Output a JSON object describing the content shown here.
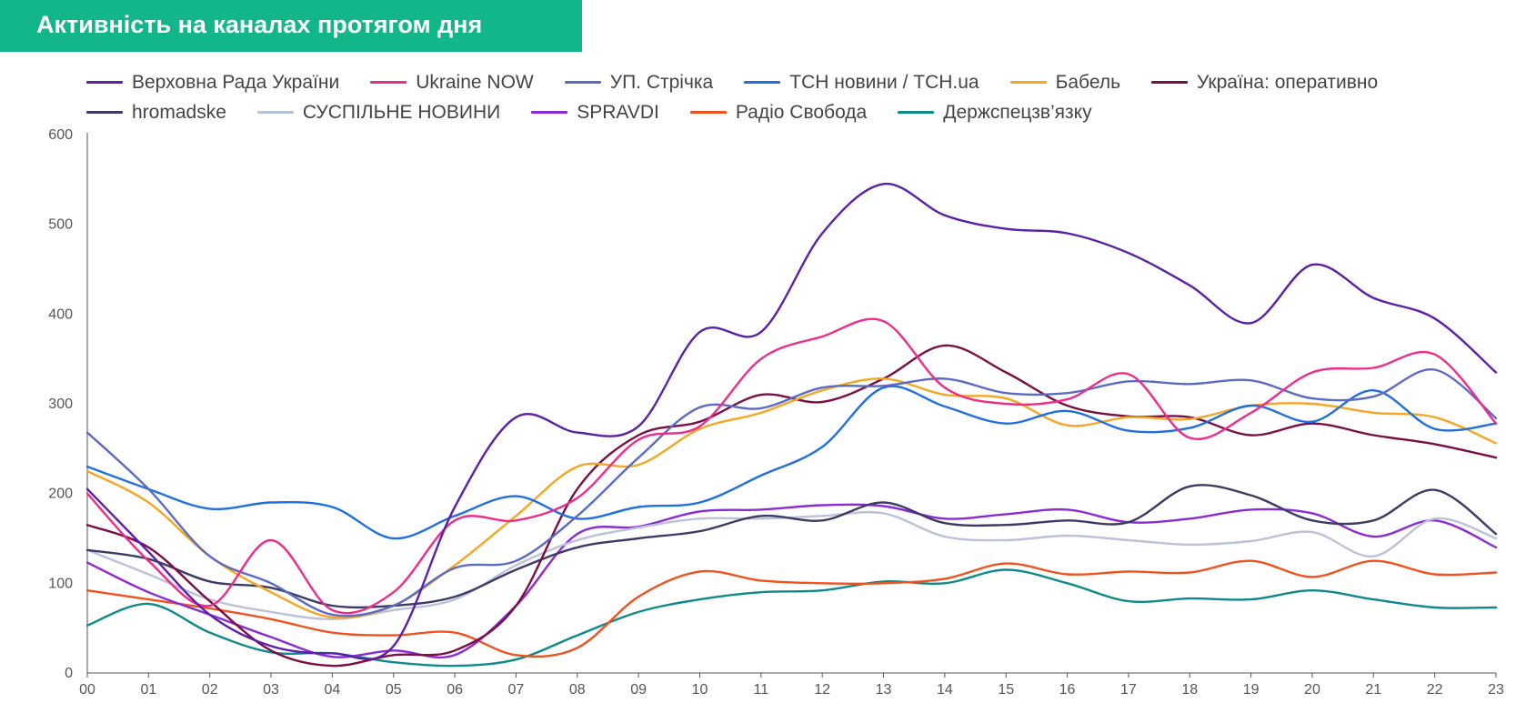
{
  "chart_data": {
    "type": "line",
    "title": "Активність на каналах протягом дня",
    "xlabel": "",
    "ylabel": "",
    "categories": [
      "00",
      "01",
      "02",
      "03",
      "04",
      "05",
      "06",
      "07",
      "08",
      "09",
      "10",
      "11",
      "12",
      "13",
      "14",
      "15",
      "16",
      "17",
      "18",
      "19",
      "20",
      "21",
      "22",
      "23"
    ],
    "yticks": [
      0,
      100,
      200,
      300,
      400,
      500,
      600
    ],
    "ylim": [
      0,
      600
    ],
    "grid": false,
    "legend_position": "top",
    "series": [
      {
        "name": "Верховна Рада України",
        "color": "#5b1fa8",
        "values": [
          205,
          135,
          65,
          30,
          22,
          30,
          185,
          285,
          268,
          275,
          380,
          380,
          490,
          545,
          510,
          495,
          490,
          468,
          432,
          390,
          455,
          418,
          395,
          335
        ]
      },
      {
        "name": "Ukraine NOW",
        "color": "#ef2c8c",
        "values": [
          200,
          125,
          75,
          148,
          70,
          90,
          170,
          170,
          195,
          260,
          275,
          350,
          375,
          392,
          318,
          300,
          305,
          333,
          262,
          290,
          335,
          340,
          355,
          278
        ]
      },
      {
        "name": "УП. Стрічка",
        "color": "#5b6ac4",
        "values": [
          268,
          205,
          130,
          100,
          65,
          75,
          117,
          125,
          175,
          240,
          296,
          295,
          318,
          320,
          328,
          312,
          312,
          325,
          322,
          326,
          306,
          308,
          338,
          284
        ]
      },
      {
        "name": "ТСН новини / ТСН.ua",
        "color": "#1f6fde",
        "values": [
          230,
          205,
          183,
          190,
          185,
          150,
          175,
          197,
          172,
          185,
          190,
          220,
          252,
          318,
          297,
          278,
          292,
          270,
          273,
          298,
          280,
          315,
          272,
          278
        ]
      },
      {
        "name": "Бабель",
        "color": "#f5a623",
        "values": [
          225,
          190,
          130,
          90,
          62,
          75,
          120,
          175,
          230,
          232,
          272,
          290,
          315,
          328,
          310,
          306,
          276,
          285,
          283,
          298,
          300,
          290,
          285,
          256
        ]
      },
      {
        "name": "Україна: оперативно",
        "color": "#7a0e45",
        "values": [
          165,
          140,
          80,
          25,
          8,
          20,
          25,
          75,
          205,
          265,
          280,
          310,
          302,
          328,
          365,
          335,
          298,
          286,
          285,
          265,
          278,
          265,
          255,
          240
        ]
      },
      {
        "name": "hromadske",
        "color": "#3b3b66",
        "values": [
          137,
          127,
          102,
          95,
          75,
          75,
          85,
          115,
          140,
          150,
          158,
          175,
          170,
          190,
          167,
          165,
          170,
          168,
          208,
          198,
          170,
          170,
          204,
          155
        ]
      },
      {
        "name": "СУСПІЛЬНЕ НОВИНИ",
        "color": "#b9c2d8",
        "values": [
          137,
          110,
          82,
          68,
          60,
          70,
          82,
          120,
          148,
          162,
          172,
          172,
          175,
          178,
          152,
          148,
          153,
          148,
          143,
          147,
          157,
          130,
          172,
          150
        ]
      },
      {
        "name": "SPRAVDI",
        "color": "#8a2bd6",
        "values": [
          123,
          90,
          65,
          40,
          18,
          25,
          20,
          75,
          155,
          163,
          180,
          182,
          187,
          186,
          172,
          177,
          182,
          168,
          172,
          182,
          178,
          152,
          170,
          140
        ]
      },
      {
        "name": "Радіо Свобода",
        "color": "#f0521e",
        "values": [
          92,
          82,
          72,
          60,
          45,
          42,
          45,
          20,
          28,
          85,
          113,
          103,
          100,
          100,
          105,
          122,
          110,
          113,
          112,
          125,
          107,
          125,
          110,
          112
        ]
      },
      {
        "name": "Держспецзв’язку",
        "color": "#0f8a8a",
        "values": [
          53,
          77,
          45,
          23,
          22,
          12,
          8,
          15,
          42,
          68,
          82,
          90,
          92,
          102,
          100,
          115,
          100,
          80,
          83,
          82,
          92,
          82,
          73,
          73
        ]
      }
    ]
  }
}
